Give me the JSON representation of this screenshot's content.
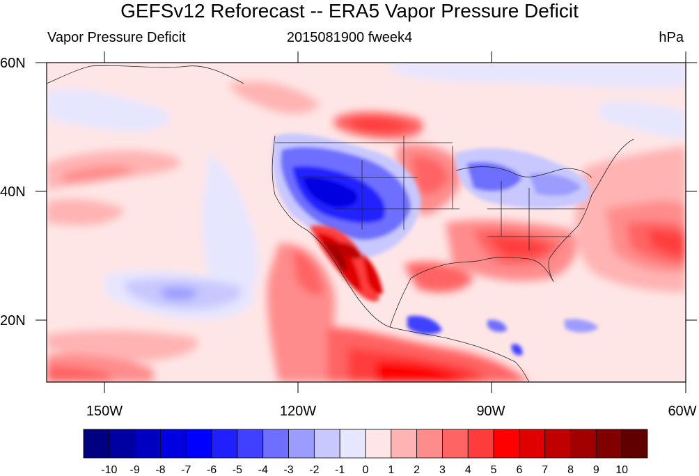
{
  "title": "GEFSv12 Reforecast -- ERA5 Vapor Pressure Deficit",
  "left_subtitle": "Vapor Pressure Deficit",
  "center_subtitle": "2015081900 fweek4",
  "right_subtitle": "hPa",
  "lat_labels": [
    "60N",
    "40N",
    "20N"
  ],
  "lon_labels": [
    "150W",
    "120W",
    "90W",
    "60W"
  ],
  "colorbar": {
    "labels": [
      "-10",
      "-9",
      "-8",
      "-7",
      "-6",
      "-5",
      "-4",
      "-3",
      "-2",
      "-1",
      "0",
      "1",
      "2",
      "3",
      "4",
      "5",
      "6",
      "7",
      "8",
      "9",
      "10"
    ],
    "colors": [
      "#000080",
      "#0000a0",
      "#0000c0",
      "#0000e0",
      "#0000ff",
      "#2020ff",
      "#4040ff",
      "#6e6eff",
      "#9c9cff",
      "#c8c8ff",
      "#e6e6ff",
      "#ffe6e6",
      "#ffb3b3",
      "#ff8c8c",
      "#ff6464",
      "#ff3c3c",
      "#ff0000",
      "#e00000",
      "#c00000",
      "#a00000",
      "#800000",
      "#600000"
    ]
  },
  "map": {
    "region": "North Pacific, North America, Caribbean",
    "extent": {
      "lon": [
        -160,
        -60
      ],
      "lat": [
        10,
        60
      ]
    }
  }
}
